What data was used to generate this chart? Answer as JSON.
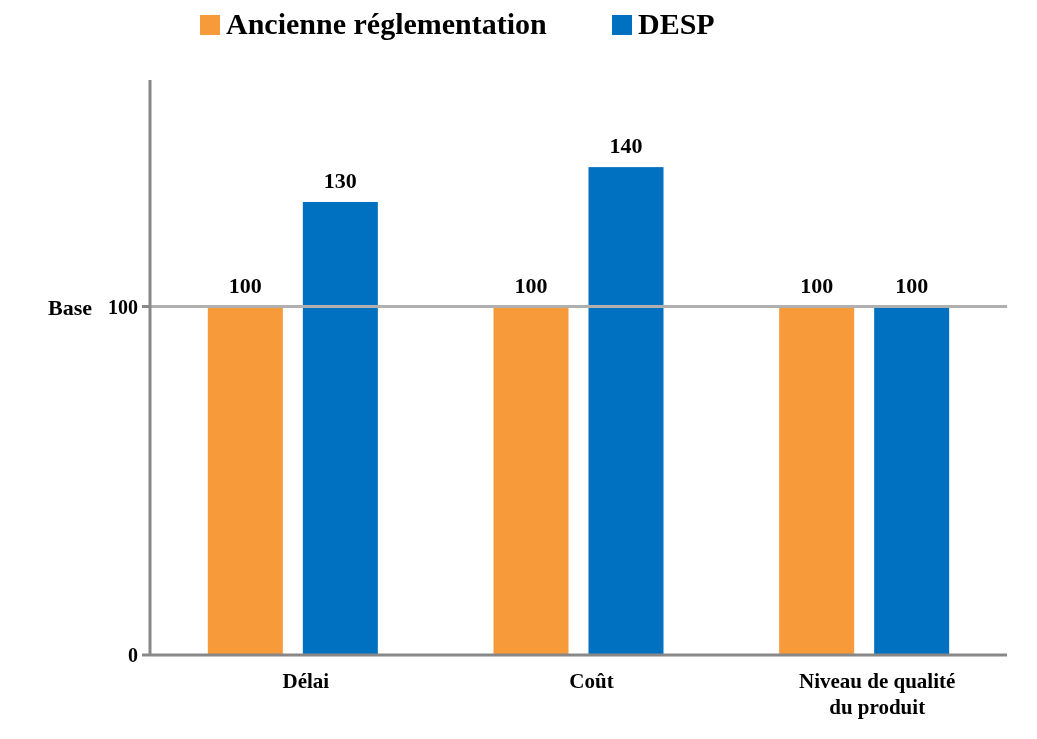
{
  "chart_data": {
    "type": "bar",
    "categories": [
      "Délai",
      "Coût",
      "Niveau de qualité du produit"
    ],
    "series": [
      {
        "name": "Ancienne réglementation",
        "color": "#f79a3a",
        "values": [
          100,
          100,
          100
        ]
      },
      {
        "name": "DESP",
        "color": "#0070c0",
        "values": [
          130,
          140,
          100
        ]
      }
    ],
    "ylim": [
      0,
      165
    ],
    "yticks": [
      0,
      100
    ],
    "data_labels": true,
    "legend": "top",
    "ref_lines": [
      {
        "axis": "y",
        "value": 100,
        "label": "Base",
        "color": "#b0b0b0"
      }
    ]
  }
}
